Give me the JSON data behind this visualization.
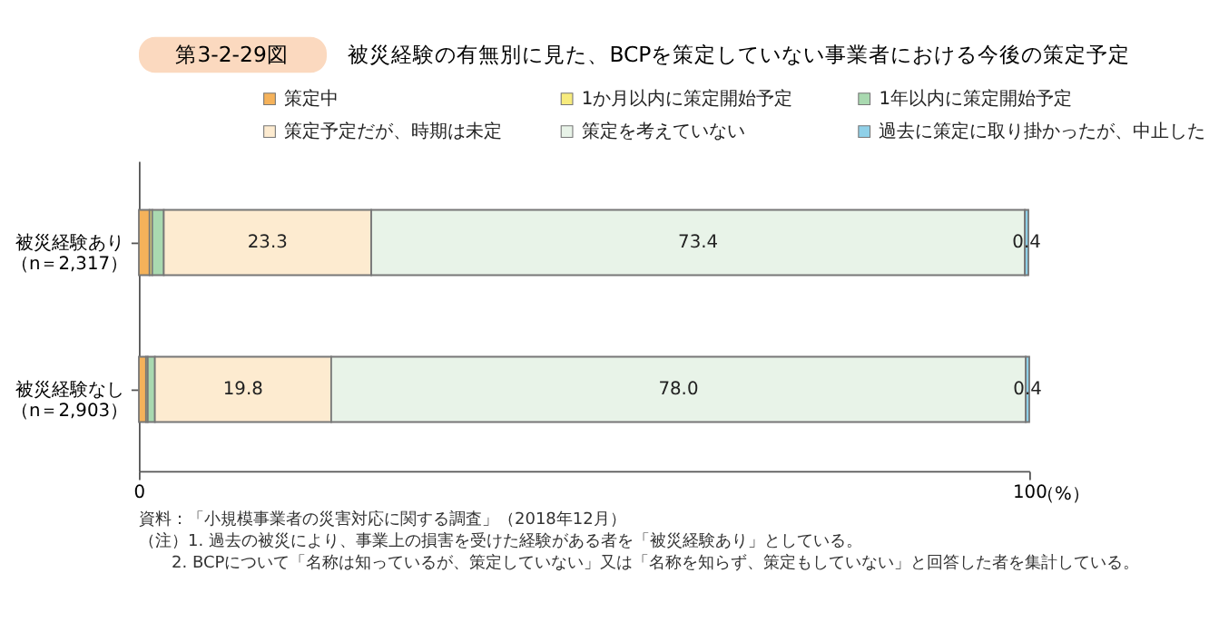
{
  "chart_data": {
    "type": "bar",
    "orientation": "horizontal",
    "stacked": true,
    "title": "被災経験の有無別に見た、BCPを策定していない事業者における今後の策定予定",
    "categories": [
      "被災経験あり（n＝2,317）",
      "被災経験なし（n＝2,903）"
    ],
    "series": [
      {
        "name": "策定中",
        "color": "#f5b25a",
        "values": [
          1.2,
          0.8
        ]
      },
      {
        "name": "1か月以内に策定開始予定",
        "color": "#f7eb7d",
        "values": [
          0.3,
          0.2
        ]
      },
      {
        "name": "1年以内に策定開始予定",
        "color": "#a9d9b0",
        "values": [
          1.3,
          0.8
        ]
      },
      {
        "name": "策定予定だが、時期は未定",
        "color": "#fdebd0",
        "values": [
          23.3,
          19.8
        ],
        "value_labels": [
          "23.3",
          "19.8"
        ]
      },
      {
        "name": "策定を考えていない",
        "color": "#e8f3e8",
        "values": [
          73.4,
          78.0
        ],
        "value_labels": [
          "73.4",
          "78.0"
        ]
      },
      {
        "name": "過去に策定に取り掛かったが、中止した",
        "color": "#8fd0e8",
        "values": [
          0.4,
          0.4
        ],
        "value_labels": [
          "0.4",
          "0.4"
        ]
      }
    ],
    "xlim": [
      0,
      100
    ],
    "xticks": [
      0,
      100
    ],
    "xlabel": "（%）",
    "grid": false,
    "legend": "top",
    "annotations": [
      "第3-2-29図",
      "資料：「小規模事業者の災害対応に関する調査」（2018年12月）",
      "（注）1. 過去の被災により、事業上の損害を受けた経験がある者を「被災経験あり」としている。",
      "2. BCPについて「名称は知っているが、策定していない」又は「名称を知らず、策定もしていない」と回答した者を集計している。"
    ]
  }
}
